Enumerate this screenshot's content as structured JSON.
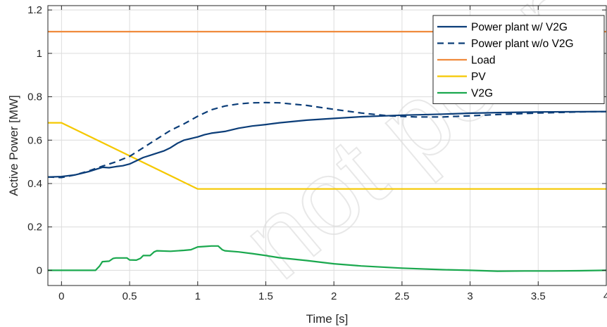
{
  "chart_data": {
    "type": "line",
    "title": "",
    "xlabel": "Time [s]",
    "ylabel": "Active Power [MW]",
    "xlim": [
      -0.1,
      4.0
    ],
    "ylim": [
      -0.07,
      1.22
    ],
    "xticks": [
      0,
      0.5,
      1,
      1.5,
      2,
      2.5,
      3,
      3.5,
      4
    ],
    "xtick_labels": [
      "0",
      "0.5",
      "1",
      "1.5",
      "2",
      "2.5",
      "3",
      "3.5",
      "4"
    ],
    "yticks": [
      0,
      0.2,
      0.4,
      0.6,
      0.8,
      1,
      1.2
    ],
    "ytick_labels": [
      "0",
      "0.2",
      "0.4",
      "0.6",
      "0.8",
      "1",
      "1.2"
    ],
    "grid": true,
    "legend_position": "top-right",
    "series": [
      {
        "name": "Power plant w/ V2G",
        "color": "#0b3d78",
        "dash": "solid",
        "x": [
          -0.1,
          0.0,
          0.1,
          0.2,
          0.3,
          0.35,
          0.4,
          0.45,
          0.5,
          0.55,
          0.6,
          0.65,
          0.7,
          0.75,
          0.8,
          0.85,
          0.9,
          1.0,
          1.05,
          1.1,
          1.2,
          1.3,
          1.4,
          1.5,
          1.6,
          1.8,
          2.0,
          2.2,
          2.5,
          2.8,
          3.0,
          3.2,
          3.5,
          3.8,
          4.0
        ],
        "y": [
          0.43,
          0.432,
          0.44,
          0.455,
          0.475,
          0.473,
          0.478,
          0.482,
          0.49,
          0.505,
          0.52,
          0.53,
          0.54,
          0.55,
          0.565,
          0.585,
          0.6,
          0.615,
          0.625,
          0.632,
          0.64,
          0.655,
          0.665,
          0.672,
          0.68,
          0.692,
          0.7,
          0.708,
          0.715,
          0.72,
          0.724,
          0.727,
          0.73,
          0.731,
          0.732
        ]
      },
      {
        "name": "Power plant w/o V2G",
        "color": "#0b3d78",
        "dash": "dashed",
        "x": [
          -0.1,
          0.0,
          0.1,
          0.2,
          0.3,
          0.4,
          0.5,
          0.6,
          0.7,
          0.8,
          0.9,
          1.0,
          1.1,
          1.2,
          1.3,
          1.4,
          1.5,
          1.6,
          1.8,
          2.0,
          2.2,
          2.4,
          2.6,
          2.8,
          3.0,
          3.2,
          3.5,
          3.8,
          4.0
        ],
        "y": [
          0.43,
          0.428,
          0.44,
          0.458,
          0.48,
          0.5,
          0.525,
          0.565,
          0.605,
          0.645,
          0.675,
          0.71,
          0.74,
          0.757,
          0.767,
          0.772,
          0.773,
          0.772,
          0.76,
          0.742,
          0.725,
          0.712,
          0.707,
          0.707,
          0.712,
          0.718,
          0.725,
          0.73,
          0.732
        ]
      },
      {
        "name": "Load",
        "color": "#f08a3c",
        "dash": "solid",
        "x": [
          -0.1,
          4.0
        ],
        "y": [
          1.1,
          1.1
        ]
      },
      {
        "name": "PV",
        "color": "#f5c800",
        "dash": "solid",
        "x": [
          -0.1,
          0.0,
          1.0,
          4.0
        ],
        "y": [
          0.68,
          0.68,
          0.375,
          0.375
        ]
      },
      {
        "name": "V2G",
        "color": "#1aa84e",
        "dash": "solid",
        "x": [
          -0.1,
          0.25,
          0.28,
          0.3,
          0.35,
          0.38,
          0.4,
          0.48,
          0.5,
          0.55,
          0.58,
          0.6,
          0.65,
          0.68,
          0.7,
          0.8,
          0.9,
          0.95,
          1.0,
          1.05,
          1.1,
          1.15,
          1.18,
          1.2,
          1.3,
          1.4,
          1.5,
          1.6,
          1.8,
          2.0,
          2.2,
          2.5,
          2.8,
          3.0,
          3.2,
          3.4,
          3.6,
          3.8,
          4.0
        ],
        "y": [
          0.0,
          0.0,
          0.02,
          0.04,
          0.042,
          0.055,
          0.057,
          0.057,
          0.048,
          0.047,
          0.055,
          0.068,
          0.068,
          0.085,
          0.09,
          0.088,
          0.092,
          0.095,
          0.108,
          0.11,
          0.112,
          0.112,
          0.095,
          0.09,
          0.085,
          0.077,
          0.068,
          0.058,
          0.045,
          0.03,
          0.02,
          0.01,
          0.003,
          0.0,
          -0.004,
          -0.003,
          -0.003,
          -0.002,
          0.0
        ]
      }
    ]
  }
}
